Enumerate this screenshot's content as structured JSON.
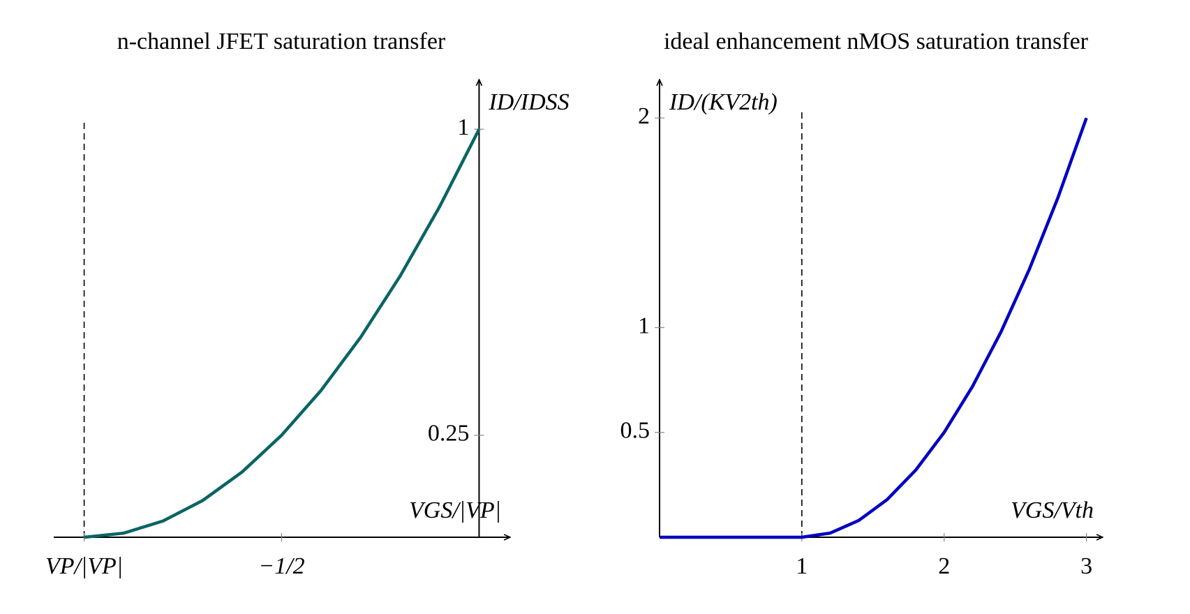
{
  "chart_data": [
    {
      "type": "line",
      "title": "n-channel JFET saturation transfer",
      "xlabel": "VGS/|VP|",
      "ylabel": "ID/IDSS",
      "x": [
        -1,
        -0.9,
        -0.8,
        -0.7,
        -0.6,
        -0.5,
        -0.4,
        -0.3,
        -0.2,
        -0.1,
        0
      ],
      "values": [
        0,
        0.01,
        0.04,
        0.09,
        0.16,
        0.25,
        0.36,
        0.49,
        0.64,
        0.81,
        1
      ],
      "color": "#0a6464",
      "xlim": [
        -1.077,
        0.077
      ],
      "ylim": [
        0,
        1.12
      ],
      "xticks": [
        {
          "value": -1,
          "label": "VP/|VP|"
        },
        {
          "value": -0.5,
          "label": "−1/2"
        }
      ],
      "yticks": [
        0.25,
        1
      ],
      "reference_x": -1
    },
    {
      "type": "line",
      "title": "ideal enhancement nMOS saturation transfer",
      "xlabel": "VGS/Vth",
      "ylabel": "ID/(KV2th)",
      "x": [
        0,
        1,
        1.2,
        1.4,
        1.6,
        1.8,
        2,
        2.2,
        2.4,
        2.6,
        2.8,
        3
      ],
      "values": [
        0,
        0,
        0.02,
        0.08,
        0.18,
        0.32,
        0.5,
        0.72,
        0.98,
        1.28,
        1.62,
        2
      ],
      "color": "#0000c0",
      "xlim": [
        0,
        3.11
      ],
      "ylim": [
        0,
        2.18
      ],
      "xticks": [
        1,
        2,
        3
      ],
      "yticks": [
        0.5,
        1,
        2
      ],
      "reference_x": 1
    }
  ]
}
